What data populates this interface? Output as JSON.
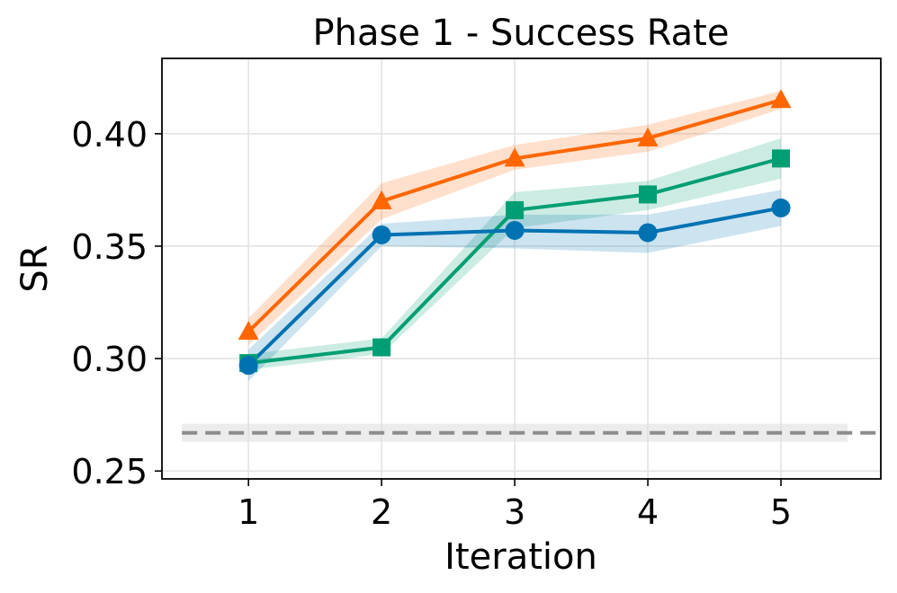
{
  "chart_data": {
    "type": "line",
    "title": "Phase 1 - Success Rate",
    "xlabel": "Iteration",
    "ylabel": "SR",
    "x": [
      1,
      2,
      3,
      4,
      5
    ],
    "x_ticks": [
      "1",
      "2",
      "3",
      "4",
      "5"
    ],
    "y_ticks": [
      "0.25",
      "0.30",
      "0.35",
      "0.40"
    ],
    "xlim": [
      0.35,
      5.75
    ],
    "ylim": [
      0.2465,
      0.4335
    ],
    "grid": true,
    "series": [
      {
        "name": "orange",
        "color": "#FF6600",
        "marker": "triangle",
        "values": [
          0.312,
          0.37,
          0.389,
          0.398,
          0.415
        ],
        "lower": [
          0.306,
          0.362,
          0.384,
          0.392,
          0.411
        ],
        "upper": [
          0.318,
          0.378,
          0.395,
          0.404,
          0.419
        ]
      },
      {
        "name": "green",
        "color": "#009E73",
        "marker": "square",
        "values": [
          0.298,
          0.305,
          0.366,
          0.373,
          0.389
        ],
        "lower": [
          0.295,
          0.302,
          0.358,
          0.366,
          0.38
        ],
        "upper": [
          0.302,
          0.309,
          0.374,
          0.379,
          0.398
        ]
      },
      {
        "name": "blue",
        "color": "#0072B2",
        "marker": "circle",
        "values": [
          0.297,
          0.355,
          0.357,
          0.356,
          0.367
        ],
        "lower": [
          0.29,
          0.35,
          0.349,
          0.347,
          0.359
        ],
        "upper": [
          0.304,
          0.36,
          0.364,
          0.364,
          0.375
        ]
      }
    ],
    "baseline": {
      "value": 0.267,
      "lower": 0.263,
      "upper": 0.271,
      "color": "#8c8c8c",
      "style": "dashed"
    }
  }
}
